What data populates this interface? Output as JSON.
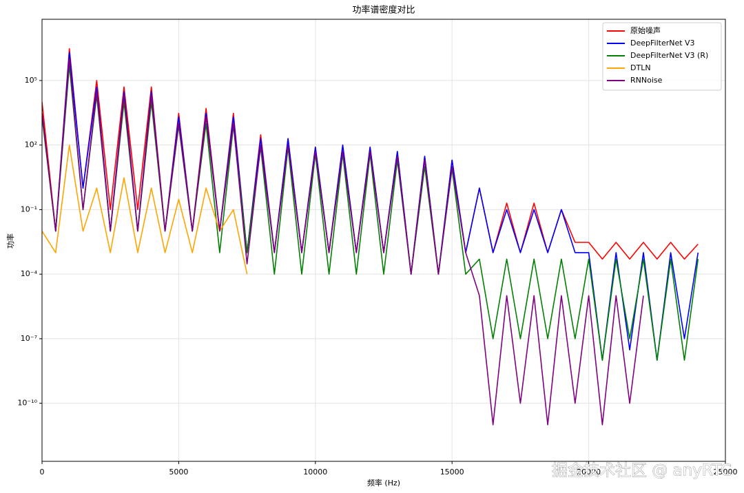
{
  "chart_data": {
    "type": "line",
    "title": "功率谱密度对比",
    "xlabel": "频率 (Hz)",
    "ylabel": "功率",
    "log_y": true,
    "grid": true,
    "legend": "upper right",
    "xlim": [
      0,
      25000
    ],
    "xticks": [
      0,
      5000,
      10000,
      15000,
      20000,
      25000
    ],
    "ylim": [
      2e-13,
      70000000.0
    ],
    "yticks": [
      {
        "value": 100000,
        "label": "10⁵"
      },
      {
        "value": 100,
        "label": "10²"
      },
      {
        "value": 0.1,
        "label": "10⁻¹"
      },
      {
        "value": 0.0001,
        "label": "10⁻⁴"
      },
      {
        "value": 1e-07,
        "label": "10⁻⁷"
      },
      {
        "value": 1e-10,
        "label": "10⁻¹⁰"
      }
    ],
    "x": [
      0,
      500,
      1000,
      1500,
      2000,
      2500,
      3000,
      3500,
      4000,
      4500,
      5000,
      5500,
      6000,
      6500,
      7000,
      7500,
      8000,
      8500,
      9000,
      9500,
      10000,
      10500,
      11000,
      11500,
      12000,
      12500,
      13000,
      13500,
      14000,
      14500,
      15000,
      15500,
      16000,
      16500,
      17000,
      17500,
      18000,
      18500,
      19000,
      19500,
      20000,
      20500,
      21000,
      21500,
      22000,
      22500,
      23000,
      23500,
      24000
    ],
    "series": [
      {
        "name": "原始噪声",
        "color": "#ff0000",
        "values": [
          10000.0,
          0.01,
          3000000.0,
          1,
          100000.0,
          0.1,
          50000.0,
          0.1,
          50000.0,
          0.01,
          3000.0,
          0.01,
          5000.0,
          0.01,
          3000.0,
          0.001,
          300,
          0.001,
          200,
          0.001,
          80,
          0.001,
          100,
          0.001,
          80,
          0.001,
          50,
          0.0001,
          30,
          0.0001,
          20,
          0.001,
          1,
          0.001,
          0.2,
          0.001,
          0.2,
          0.001,
          0.1,
          0.003,
          0.003,
          0.0005,
          0.003,
          0.0005,
          0.003,
          0.0005,
          0.003,
          0.0005,
          0.0025
        ]
      },
      {
        "name": "DeepFilterNet V3",
        "color": "#0000ff",
        "values": [
          3000.0,
          0.01,
          2000000.0,
          1,
          50000.0,
          0.01,
          30000.0,
          0.01,
          30000.0,
          0.01,
          2000.0,
          0.01,
          3000.0,
          0.01,
          2000.0,
          0.001,
          200,
          0.001,
          200,
          0.001,
          80,
          0.001,
          100,
          0.001,
          80,
          0.001,
          50,
          0.0001,
          30,
          0.0001,
          20,
          0.001,
          1,
          0.001,
          0.1,
          0.001,
          0.1,
          0.001,
          0.1,
          0.001,
          0.001,
          1e-08,
          0.001,
          3e-08,
          0.001,
          1e-08,
          0.001,
          1e-07,
          0.001
        ]
      },
      {
        "name": "DeepFilterNet V3 (R)",
        "color": "#008000",
        "values": [
          2000.0,
          0.01,
          500000.0,
          0.1,
          20000.0,
          0.01,
          10000.0,
          0.01,
          10000.0,
          0.01,
          800,
          0.01,
          1000.0,
          0.001,
          800,
          0.001,
          80,
          0.0001,
          80,
          0.0001,
          40,
          0.0001,
          40,
          0.0001,
          40,
          0.0001,
          20,
          0.0001,
          10,
          0.0001,
          8,
          0.0001,
          0.0005,
          1e-07,
          0.0005,
          1e-07,
          0.0005,
          1e-07,
          0.0005,
          1e-07,
          0.0005,
          1e-08,
          0.0005,
          1e-07,
          0.0005,
          1e-08,
          0.0005,
          1e-08,
          0.0005
        ]
      },
      {
        "name": "DTLN",
        "color": "#ffa500",
        "values": [
          0.01,
          0.001,
          100,
          0.01,
          1,
          0.001,
          3,
          0.001,
          1,
          0.001,
          0.3,
          0.001,
          1,
          0.01,
          0.1,
          0.0001,
          null,
          null,
          null,
          null,
          null,
          null,
          null,
          null,
          null,
          null,
          null,
          null,
          null,
          null,
          null,
          null,
          null,
          null,
          null,
          null,
          null,
          null,
          null,
          null,
          null,
          null,
          null,
          null,
          null,
          null,
          null,
          null,
          null
        ]
      },
      {
        "name": "RNNoise",
        "color": "#800080",
        "values": [
          3000.0,
          0.01,
          1000000.0,
          0.1,
          30000.0,
          0.01,
          20000.0,
          0.01,
          20000.0,
          0.01,
          1000.0,
          0.01,
          2000.0,
          0.01,
          1000.0,
          0.0003,
          100,
          0.001,
          100,
          0.001,
          50,
          0.001,
          50,
          0.001,
          50,
          0.001,
          30,
          0.0001,
          20,
          0.0001,
          10,
          0.001,
          1e-05,
          1e-11,
          1e-05,
          1e-10,
          1e-05,
          1e-11,
          1e-05,
          1e-10,
          1e-05,
          1e-11,
          1e-05,
          1e-10,
          1e-05,
          null,
          null,
          null,
          null
        ]
      }
    ],
    "annotations": [
      "掘金技术社区 @ anyRTC"
    ]
  }
}
